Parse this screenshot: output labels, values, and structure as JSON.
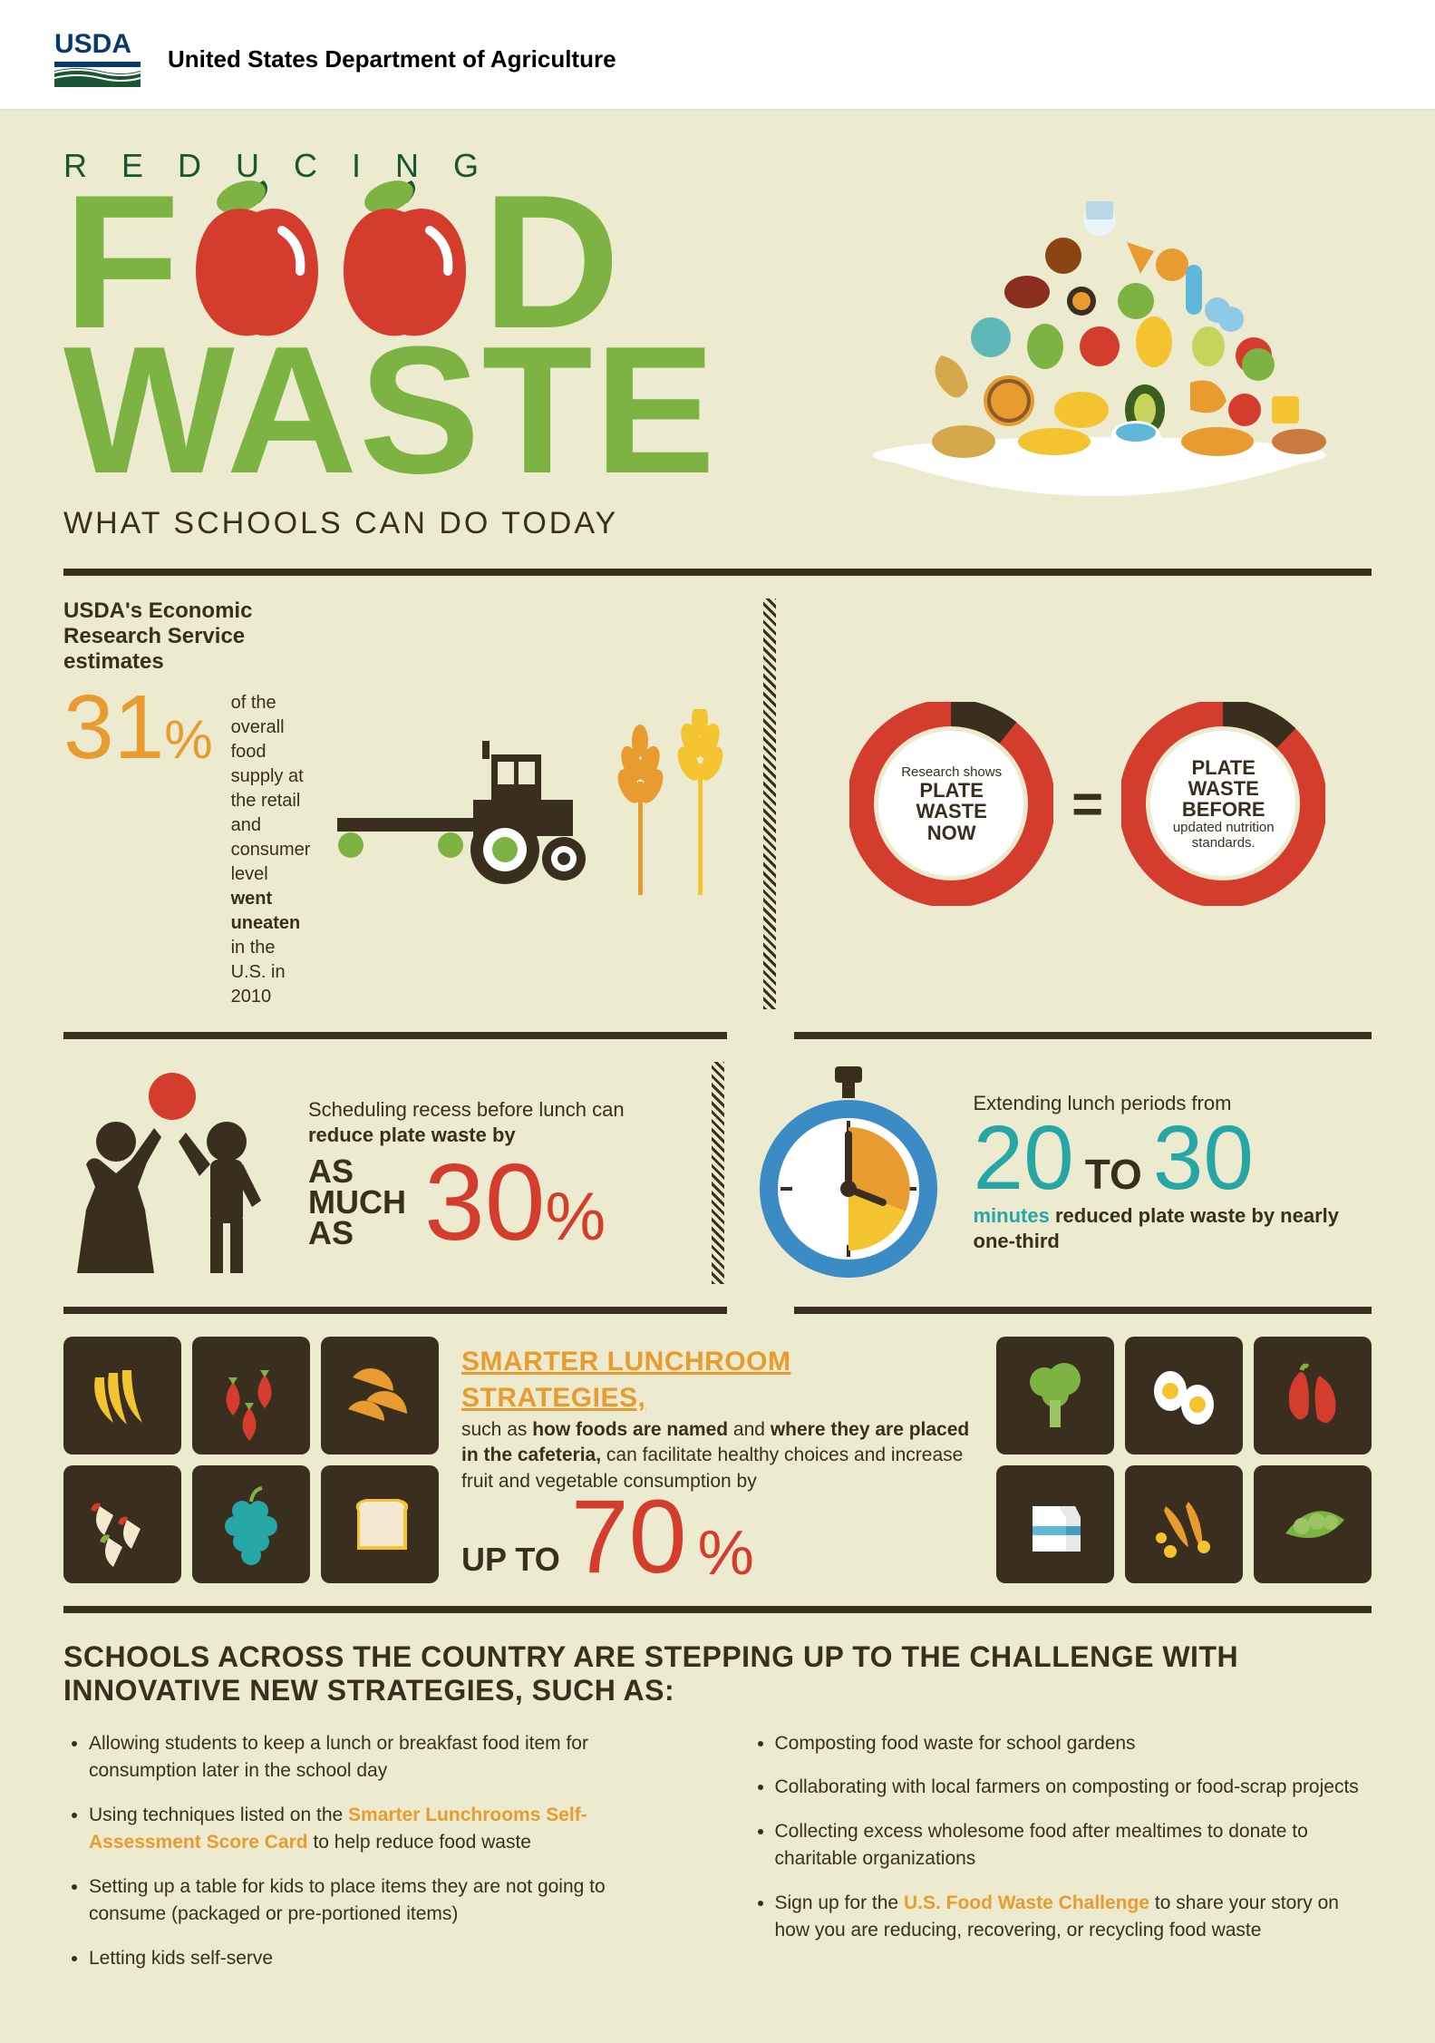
{
  "header": {
    "org": "United States Department of Agriculture",
    "logo_text": "USDA"
  },
  "title": {
    "reducing": "REDUCING",
    "f": "F",
    "d": "D",
    "waste": "WASTE",
    "subtitle": "WHAT SCHOOLS CAN DO TODAY"
  },
  "colors": {
    "bg": "#ecebcf",
    "dark": "#3a2e1f",
    "green": "#7db342",
    "dark_green": "#1b5633",
    "orange": "#e89b2f",
    "red": "#d43c2e",
    "teal": "#27a6a6",
    "apple_red": "#d43c2e",
    "wheat": "#e89b2f",
    "donut_red": "#d43c2e"
  },
  "ers": {
    "title": "USDA's Economic Research Service estimates",
    "pct": "31",
    "pct_sign": "%",
    "body_pre": "of the overall food supply at the retail and consumer level ",
    "body_bold": "went uneaten",
    "body_post": " in the U.S. in 2010"
  },
  "donuts": {
    "left": {
      "small1": "Research shows",
      "big": "PLATE WASTE NOW",
      "red_pct": 90
    },
    "eq": "=",
    "right": {
      "big": "PLATE WASTE BEFORE",
      "small2": "updated nutrition standards.",
      "red_pct": 88
    }
  },
  "recess": {
    "line1_pre": "Scheduling recess before lunch can ",
    "line1_bold": "reduce plate waste by",
    "asmuch": "AS MUCH AS",
    "pct": "30",
    "pct_sign": "%"
  },
  "extend": {
    "line1": "Extending lunch periods from",
    "n1": "20",
    "to": "TO",
    "n2": "30",
    "line2_teal": "minutes",
    "line2_bold": " reduced plate waste by nearly one-third"
  },
  "smarter": {
    "title": "SMARTER LUNCHROOM STRATEGIES,",
    "body1": "such as ",
    "body1_bold": "how foods are named",
    "body2": " and ",
    "body2_bold": "where they are placed in the cafeteria,",
    "body3": " can facilitate healthy choices and increase fruit and vegetable consumption by",
    "upto": "UP TO",
    "pct": "70",
    "pct_sign": "%"
  },
  "food_tiles_left": [
    "bananas",
    "strawberries",
    "orange-slices",
    "apple-slices",
    "grapes",
    "bread"
  ],
  "food_tiles_right": [
    "broccoli",
    "eggs",
    "peppers",
    "milk",
    "carrots",
    "peas"
  ],
  "bottom": {
    "title": "SCHOOLS ACROSS THE COUNTRY ARE STEPPING UP TO THE CHALLENGE WITH INNOVATIVE NEW STRATEGIES, SUCH AS:",
    "col1": [
      {
        "text": "Allowing students to keep a lunch or breakfast food item for consumption later in the school day"
      },
      {
        "pre": "Using techniques listed on the ",
        "link": "Smarter Lunchrooms Self-Assessment Score Card",
        "post": " to help reduce food waste"
      },
      {
        "text": "Setting up a table for kids to place items they are not going to consume (packaged or pre-portioned items)"
      },
      {
        "text": "Letting kids self-serve"
      }
    ],
    "col2": [
      {
        "text": "Composting food waste for school gardens"
      },
      {
        "text": "Collaborating with local farmers on composting or food-scrap projects"
      },
      {
        "text": "Collecting excess wholesome food after mealtimes to donate to charitable organizations"
      },
      {
        "pre": "Sign up for the ",
        "link": "U.S. Food Waste Challenge",
        "post": " to share your story on how you are reducing, recovering, or recycling food waste"
      }
    ]
  }
}
